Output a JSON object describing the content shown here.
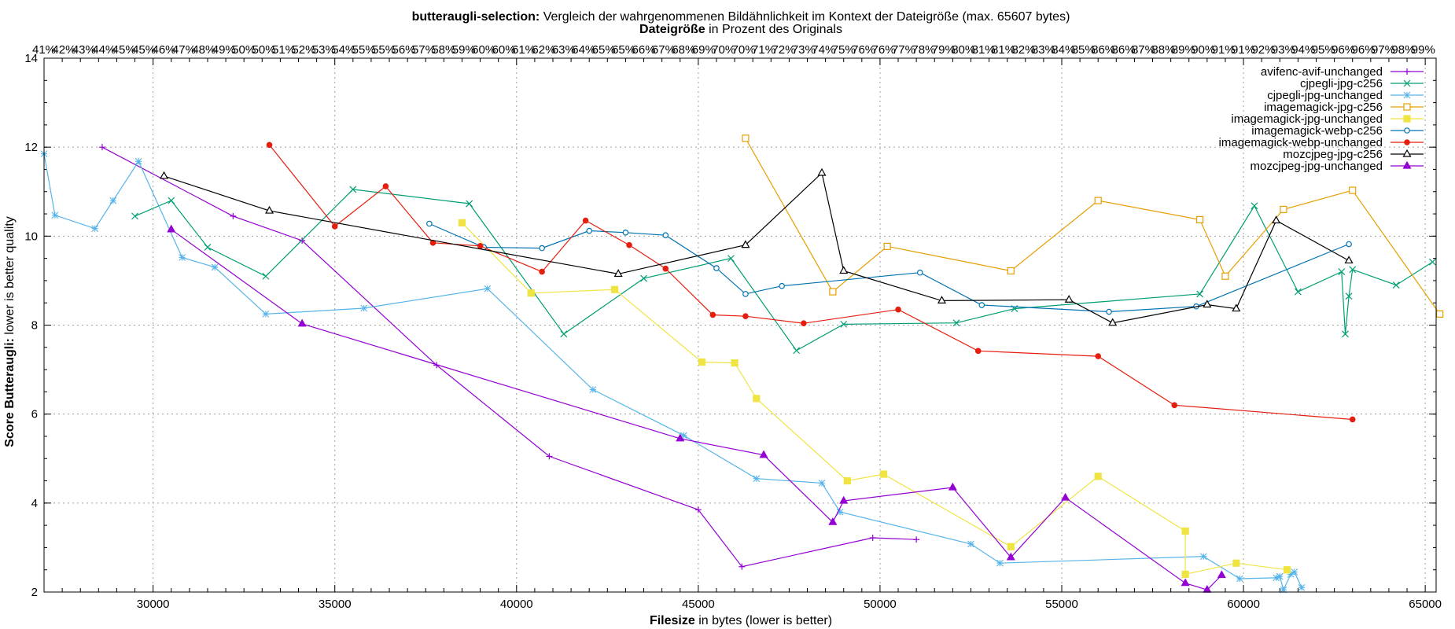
{
  "chart_data": {
    "type": "line",
    "title_bold": "butteraugli-selection:",
    "title_rest": "Vergleich der wahrgenommenen Bildähnlichkeit im Kontext der Dateigröße (max. 65607 bytes)",
    "subtitle_bold": "Dateigröße",
    "subtitle_rest": "in Prozent des Originals",
    "xlabel_bold": "Filesize",
    "xlabel_rest": "in bytes (lower is better)",
    "ylabel_bold": "Score Butteraugli:",
    "ylabel_rest": "lower is better quality",
    "xlim": [
      27000,
      65300
    ],
    "ylim": [
      2,
      14
    ],
    "x_ticks": [
      30000,
      35000,
      40000,
      45000,
      50000,
      55000,
      60000,
      65000
    ],
    "y_ticks": [
      2,
      4,
      6,
      8,
      10,
      12,
      14
    ],
    "grid": true,
    "legend_position": "top-right",
    "top_axis_note": "overlapping percentage tick labels (~42% – 100%)",
    "series": [
      {
        "name": "avifenc-avif-unchanged",
        "color": "#9400d3",
        "marker": "plus",
        "points": [
          [
            28600,
            12.0
          ],
          [
            32200,
            10.45
          ],
          [
            34100,
            9.9
          ],
          [
            37800,
            7.1
          ],
          [
            40900,
            5.05
          ],
          [
            45000,
            3.85
          ],
          [
            46200,
            2.57
          ],
          [
            49800,
            3.22
          ],
          [
            51000,
            3.18
          ]
        ]
      },
      {
        "name": "cjpegli-jpg-c256",
        "color": "#009e73",
        "marker": "x",
        "points": [
          [
            29500,
            10.45
          ],
          [
            30500,
            10.8
          ],
          [
            31500,
            9.75
          ],
          [
            33100,
            9.1
          ],
          [
            35500,
            11.05
          ],
          [
            38700,
            10.73
          ],
          [
            41300,
            7.8
          ],
          [
            43500,
            9.05
          ],
          [
            45900,
            9.5
          ],
          [
            47700,
            7.43
          ],
          [
            49000,
            8.02
          ],
          [
            52100,
            8.05
          ],
          [
            53700,
            8.37
          ],
          [
            58800,
            8.7
          ],
          [
            60300,
            10.68
          ],
          [
            61500,
            8.75
          ],
          [
            62700,
            9.2
          ],
          [
            62800,
            7.8
          ],
          [
            62900,
            8.65
          ],
          [
            63000,
            9.25
          ],
          [
            64200,
            8.9
          ],
          [
            65200,
            9.42
          ]
        ]
      },
      {
        "name": "cjpegli-jpg-unchanged",
        "color": "#56b4e9",
        "marker": "star",
        "points": [
          [
            27000,
            11.85
          ],
          [
            27300,
            10.47
          ],
          [
            28400,
            10.17
          ],
          [
            28900,
            10.8
          ],
          [
            29600,
            11.68
          ],
          [
            30800,
            9.52
          ],
          [
            31700,
            9.3
          ],
          [
            33100,
            8.25
          ],
          [
            35800,
            8.38
          ],
          [
            39200,
            8.82
          ],
          [
            42100,
            6.55
          ],
          [
            44600,
            5.52
          ],
          [
            46600,
            4.55
          ],
          [
            48400,
            4.45
          ],
          [
            48900,
            3.8
          ],
          [
            52500,
            3.08
          ],
          [
            53300,
            2.65
          ],
          [
            58900,
            2.8
          ],
          [
            59900,
            2.3
          ],
          [
            60900,
            2.32
          ],
          [
            61000,
            2.35
          ],
          [
            61100,
            2.05
          ],
          [
            61300,
            2.4
          ],
          [
            61400,
            2.45
          ],
          [
            61600,
            2.1
          ]
        ]
      },
      {
        "name": "imagemagick-jpg-c256",
        "color": "#e69f00",
        "marker": "square",
        "points": [
          [
            46300,
            12.2
          ],
          [
            48700,
            8.75
          ],
          [
            50200,
            9.77
          ],
          [
            53600,
            9.22
          ],
          [
            56000,
            10.8
          ],
          [
            58800,
            10.37
          ],
          [
            59500,
            9.1
          ],
          [
            61100,
            10.6
          ],
          [
            63000,
            11.03
          ],
          [
            65400,
            8.25
          ]
        ]
      },
      {
        "name": "imagemagick-jpg-unchanged",
        "color": "#f0e442",
        "marker": "square-filled",
        "points": [
          [
            38500,
            10.3
          ],
          [
            40400,
            8.72
          ],
          [
            42700,
            8.8
          ],
          [
            45100,
            7.17
          ],
          [
            46000,
            7.15
          ],
          [
            46600,
            6.35
          ],
          [
            49100,
            4.5
          ],
          [
            50100,
            4.65
          ],
          [
            53600,
            3.02
          ],
          [
            56000,
            4.6
          ],
          [
            58400,
            3.37
          ],
          [
            58400,
            2.4
          ],
          [
            59800,
            2.65
          ],
          [
            61200,
            2.5
          ]
        ]
      },
      {
        "name": "imagemagick-webp-c256",
        "color": "#0072b2",
        "marker": "circle",
        "points": [
          [
            37600,
            10.28
          ],
          [
            39100,
            9.75
          ],
          [
            40700,
            9.73
          ],
          [
            42000,
            10.12
          ],
          [
            43000,
            10.08
          ],
          [
            44100,
            10.02
          ],
          [
            45500,
            9.28
          ],
          [
            46300,
            8.7
          ],
          [
            47300,
            8.88
          ],
          [
            51100,
            9.18
          ],
          [
            52800,
            8.45
          ],
          [
            56300,
            8.3
          ],
          [
            58700,
            8.42
          ],
          [
            62900,
            9.82
          ]
        ]
      },
      {
        "name": "imagemagick-webp-unchanged",
        "color": "#e51e10",
        "marker": "circle-filled",
        "points": [
          [
            33200,
            12.05
          ],
          [
            35000,
            10.22
          ],
          [
            36400,
            11.12
          ],
          [
            37700,
            9.85
          ],
          [
            39000,
            9.78
          ],
          [
            40700,
            9.2
          ],
          [
            41900,
            10.35
          ],
          [
            43100,
            9.8
          ],
          [
            44100,
            9.27
          ],
          [
            45400,
            8.23
          ],
          [
            46300,
            8.2
          ],
          [
            47900,
            8.04
          ],
          [
            50500,
            8.35
          ],
          [
            52700,
            7.42
          ],
          [
            56000,
            7.3
          ],
          [
            58100,
            6.2
          ],
          [
            63000,
            5.88
          ]
        ]
      },
      {
        "name": "mozcjpeg-jpg-c256",
        "color": "#000000",
        "marker": "triangle",
        "points": [
          [
            30300,
            11.35
          ],
          [
            33200,
            10.57
          ],
          [
            42800,
            9.15
          ],
          [
            46300,
            9.8
          ],
          [
            48400,
            11.42
          ],
          [
            49000,
            9.22
          ],
          [
            51700,
            8.55
          ],
          [
            55200,
            8.57
          ],
          [
            56400,
            8.05
          ],
          [
            59000,
            8.46
          ],
          [
            59800,
            8.37
          ],
          [
            60900,
            10.35
          ],
          [
            62900,
            9.45
          ]
        ]
      },
      {
        "name": "mozcjpeg-jpg-unchanged",
        "color": "#9400d3",
        "marker": "triangle-filled",
        "points": [
          [
            30500,
            10.15
          ],
          [
            34100,
            8.03
          ],
          [
            44500,
            5.45
          ],
          [
            46800,
            5.08
          ],
          [
            48700,
            3.57
          ],
          [
            49000,
            4.05
          ],
          [
            52000,
            4.35
          ],
          [
            53600,
            2.78
          ],
          [
            55100,
            4.12
          ],
          [
            58400,
            2.2
          ],
          [
            59000,
            2.05
          ],
          [
            59400,
            2.38
          ]
        ]
      }
    ]
  }
}
